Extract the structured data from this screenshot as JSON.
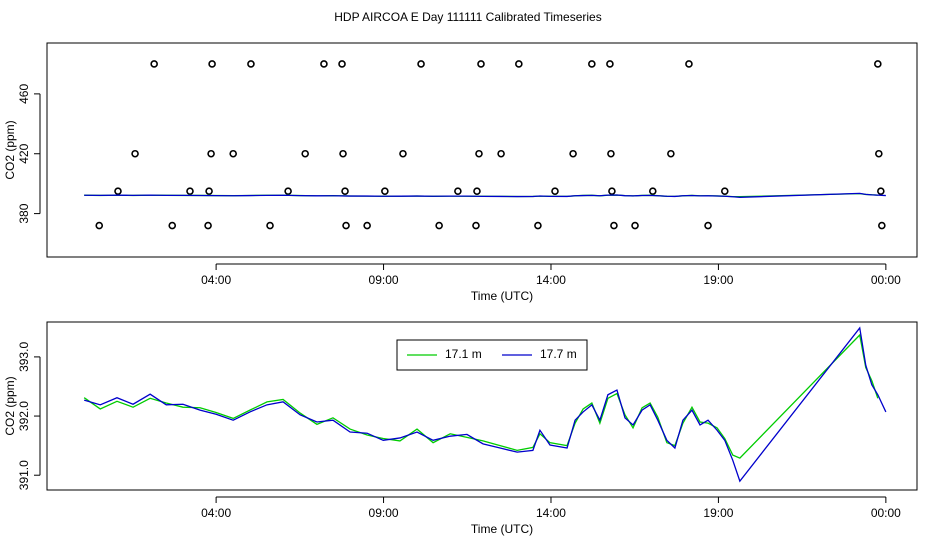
{
  "chart_data": [
    {
      "type": "line",
      "title": "HDP AIRCOA E  Day 111111  Calibrated Timeseries",
      "xlabel": "Time (UTC)",
      "ylabel": "CO2 (ppm)",
      "xlim": [
        -1.05,
        24.93
      ],
      "ylim": [
        351,
        494
      ],
      "xticks": [
        {
          "value": 4,
          "label": "04:00"
        },
        {
          "value": 9,
          "label": "09:00"
        },
        {
          "value": 14,
          "label": "14:00"
        },
        {
          "value": 19,
          "label": "19:00"
        },
        {
          "value": 24,
          "label": "00:00"
        }
      ],
      "yticks": [
        380,
        420,
        460
      ],
      "series": [
        {
          "style": "points",
          "color": "#000000",
          "x": [
            2.15,
            3.88,
            5.04,
            7.22,
            7.76,
            10.12,
            11.91,
            13.04,
            15.22,
            15.76,
            18.12,
            23.76,
            1.58,
            3.85,
            4.51,
            6.66,
            7.79,
            9.58,
            11.85,
            12.51,
            14.66,
            15.79,
            17.58,
            23.79,
            1.07,
            3.22,
            3.79,
            6.15,
            7.85,
            9.04,
            11.22,
            11.79,
            14.12,
            15.82,
            17.04,
            19.19,
            23.85,
            0.51,
            2.69,
            3.76,
            5.61,
            7.88,
            8.51,
            10.66,
            11.76,
            13.61,
            15.88,
            16.51,
            18.69,
            23.88
          ],
          "values": [
            480,
            480,
            480,
            480,
            480,
            480,
            480,
            480,
            480,
            480,
            480,
            480,
            420,
            420,
            420,
            420,
            420,
            420,
            420,
            420,
            420,
            420,
            420,
            420,
            395,
            395,
            395,
            395,
            395,
            395,
            395,
            395,
            395,
            395,
            395,
            395,
            395,
            372,
            372,
            372,
            372,
            372,
            372,
            372,
            372,
            372,
            372,
            372,
            372,
            372
          ]
        },
        {
          "style": "line",
          "color": "#00cc00",
          "x": [
            0.06,
            0.54,
            1.04,
            1.52,
            2.03,
            2.51,
            3.01,
            3.52,
            4.0,
            4.51,
            5.01,
            5.52,
            6.0,
            6.51,
            7.01,
            7.49,
            8.0,
            8.51,
            8.99,
            9.49,
            10.0,
            10.48,
            10.99,
            11.49,
            11.97,
            12.48,
            12.99,
            13.46,
            13.67,
            13.97,
            14.48,
            14.72,
            14.96,
            15.22,
            15.46,
            15.7,
            15.97,
            16.21,
            16.45,
            16.72,
            16.96,
            17.19,
            17.46,
            17.7,
            17.94,
            18.21,
            18.45,
            18.69,
            18.96,
            19.19,
            19.43,
            19.64,
            23.22,
            23.4,
            23.58,
            23.76,
            24.0
          ],
          "values": [
            392.31,
            392.12,
            392.25,
            392.15,
            392.3,
            392.22,
            392.15,
            392.14,
            392.06,
            391.96,
            392.1,
            392.24,
            392.28,
            392.05,
            391.86,
            391.97,
            391.78,
            391.68,
            391.62,
            391.58,
            391.78,
            391.55,
            391.7,
            391.64,
            391.58,
            391.5,
            391.42,
            391.47,
            391.7,
            391.55,
            391.5,
            391.88,
            392.12,
            392.22,
            391.88,
            392.3,
            392.38,
            392.02,
            391.8,
            392.14,
            392.22,
            391.98,
            391.55,
            391.5,
            391.88,
            392.15,
            391.9,
            391.88,
            391.8,
            391.62,
            391.34,
            391.29,
            393.37,
            392.82,
            392.6,
            392.3,
            null
          ]
        },
        {
          "style": "line",
          "color": "#0000cc",
          "x": [
            0.06,
            0.54,
            1.04,
            1.52,
            2.03,
            2.51,
            3.01,
            3.52,
            4.0,
            4.51,
            5.01,
            5.52,
            6.0,
            6.51,
            7.01,
            7.49,
            8.0,
            8.51,
            8.99,
            9.49,
            10.0,
            10.48,
            10.99,
            11.49,
            11.97,
            12.48,
            12.99,
            13.46,
            13.67,
            13.97,
            14.48,
            14.72,
            14.96,
            15.22,
            15.46,
            15.7,
            15.97,
            16.21,
            16.45,
            16.72,
            16.96,
            17.19,
            17.46,
            17.7,
            17.94,
            18.21,
            18.45,
            18.69,
            18.96,
            19.19,
            19.43,
            19.64,
            23.22,
            23.4,
            23.58,
            23.76,
            24.0
          ],
          "values": [
            392.27,
            392.19,
            392.31,
            392.2,
            392.37,
            392.19,
            392.2,
            392.1,
            392.03,
            391.93,
            392.07,
            392.19,
            392.24,
            392.02,
            391.9,
            391.93,
            391.73,
            391.71,
            391.59,
            391.63,
            391.73,
            391.59,
            391.66,
            391.69,
            391.53,
            391.46,
            391.39,
            391.42,
            391.76,
            391.51,
            391.46,
            391.93,
            392.07,
            392.19,
            391.93,
            392.36,
            392.44,
            391.97,
            391.85,
            392.1,
            392.19,
            391.93,
            391.59,
            391.46,
            391.93,
            392.1,
            391.85,
            391.93,
            391.76,
            391.59,
            391.25,
            390.9,
            393.49,
            392.86,
            392.53,
            392.36,
            392.07
          ]
        }
      ]
    },
    {
      "type": "line",
      "xlabel": "Time (UTC)",
      "ylabel": "CO2 (ppm)",
      "legend": "top",
      "xlim": [
        -1.05,
        24.93
      ],
      "ylim": [
        390.75,
        393.59
      ],
      "xticks": [
        {
          "value": 4,
          "label": "04:00"
        },
        {
          "value": 9,
          "label": "09:00"
        },
        {
          "value": 14,
          "label": "14:00"
        },
        {
          "value": 19,
          "label": "19:00"
        },
        {
          "value": 24,
          "label": "00:00"
        }
      ],
      "yticks": [
        {
          "value": 391,
          "label": "391.0"
        },
        {
          "value": 392,
          "label": "392.0"
        },
        {
          "value": 393,
          "label": "393.0"
        }
      ],
      "series": [
        {
          "name": "17.1 m",
          "style": "line",
          "color": "#00cc00",
          "x": [
            0.06,
            0.54,
            1.04,
            1.52,
            2.03,
            2.51,
            3.01,
            3.52,
            4.0,
            4.51,
            5.01,
            5.52,
            6.0,
            6.51,
            7.01,
            7.49,
            8.0,
            8.51,
            8.99,
            9.49,
            10.0,
            10.48,
            10.99,
            11.49,
            11.97,
            12.48,
            12.99,
            13.46,
            13.67,
            13.97,
            14.48,
            14.72,
            14.96,
            15.22,
            15.46,
            15.7,
            15.97,
            16.21,
            16.45,
            16.72,
            16.96,
            17.19,
            17.46,
            17.7,
            17.94,
            18.21,
            18.45,
            18.69,
            18.96,
            19.19,
            19.43,
            19.64,
            23.22,
            23.4,
            23.58,
            23.76,
            24.0
          ],
          "values": [
            392.31,
            392.12,
            392.25,
            392.15,
            392.3,
            392.22,
            392.15,
            392.14,
            392.06,
            391.96,
            392.1,
            392.24,
            392.28,
            392.05,
            391.86,
            391.97,
            391.78,
            391.68,
            391.62,
            391.58,
            391.78,
            391.55,
            391.7,
            391.64,
            391.58,
            391.5,
            391.42,
            391.47,
            391.7,
            391.55,
            391.5,
            391.88,
            392.12,
            392.22,
            391.88,
            392.3,
            392.38,
            392.02,
            391.8,
            392.14,
            392.22,
            391.98,
            391.55,
            391.5,
            391.88,
            392.15,
            391.9,
            391.88,
            391.8,
            391.62,
            391.34,
            391.29,
            393.37,
            392.82,
            392.6,
            392.3,
            null
          ]
        },
        {
          "name": "17.7 m",
          "style": "line",
          "color": "#0000cc",
          "x": [
            0.06,
            0.54,
            1.04,
            1.52,
            2.03,
            2.51,
            3.01,
            3.52,
            4.0,
            4.51,
            5.01,
            5.52,
            6.0,
            6.51,
            7.01,
            7.49,
            8.0,
            8.51,
            8.99,
            9.49,
            10.0,
            10.48,
            10.99,
            11.49,
            11.97,
            12.48,
            12.99,
            13.46,
            13.67,
            13.97,
            14.48,
            14.72,
            14.96,
            15.22,
            15.46,
            15.7,
            15.97,
            16.21,
            16.45,
            16.72,
            16.96,
            17.19,
            17.46,
            17.7,
            17.94,
            18.21,
            18.45,
            18.69,
            18.96,
            19.19,
            19.43,
            19.64,
            23.22,
            23.4,
            23.58,
            23.76,
            24.0
          ],
          "values": [
            392.27,
            392.19,
            392.31,
            392.2,
            392.37,
            392.19,
            392.2,
            392.1,
            392.03,
            391.93,
            392.07,
            392.19,
            392.24,
            392.02,
            391.9,
            391.93,
            391.73,
            391.71,
            391.59,
            391.63,
            391.73,
            391.59,
            391.66,
            391.69,
            391.53,
            391.46,
            391.39,
            391.42,
            391.76,
            391.51,
            391.46,
            391.93,
            392.07,
            392.19,
            391.93,
            392.36,
            392.44,
            391.97,
            391.85,
            392.1,
            392.19,
            391.93,
            391.59,
            391.46,
            391.93,
            392.1,
            391.85,
            391.93,
            391.76,
            391.59,
            391.25,
            390.9,
            393.49,
            392.86,
            392.53,
            392.36,
            392.07
          ]
        }
      ]
    }
  ]
}
